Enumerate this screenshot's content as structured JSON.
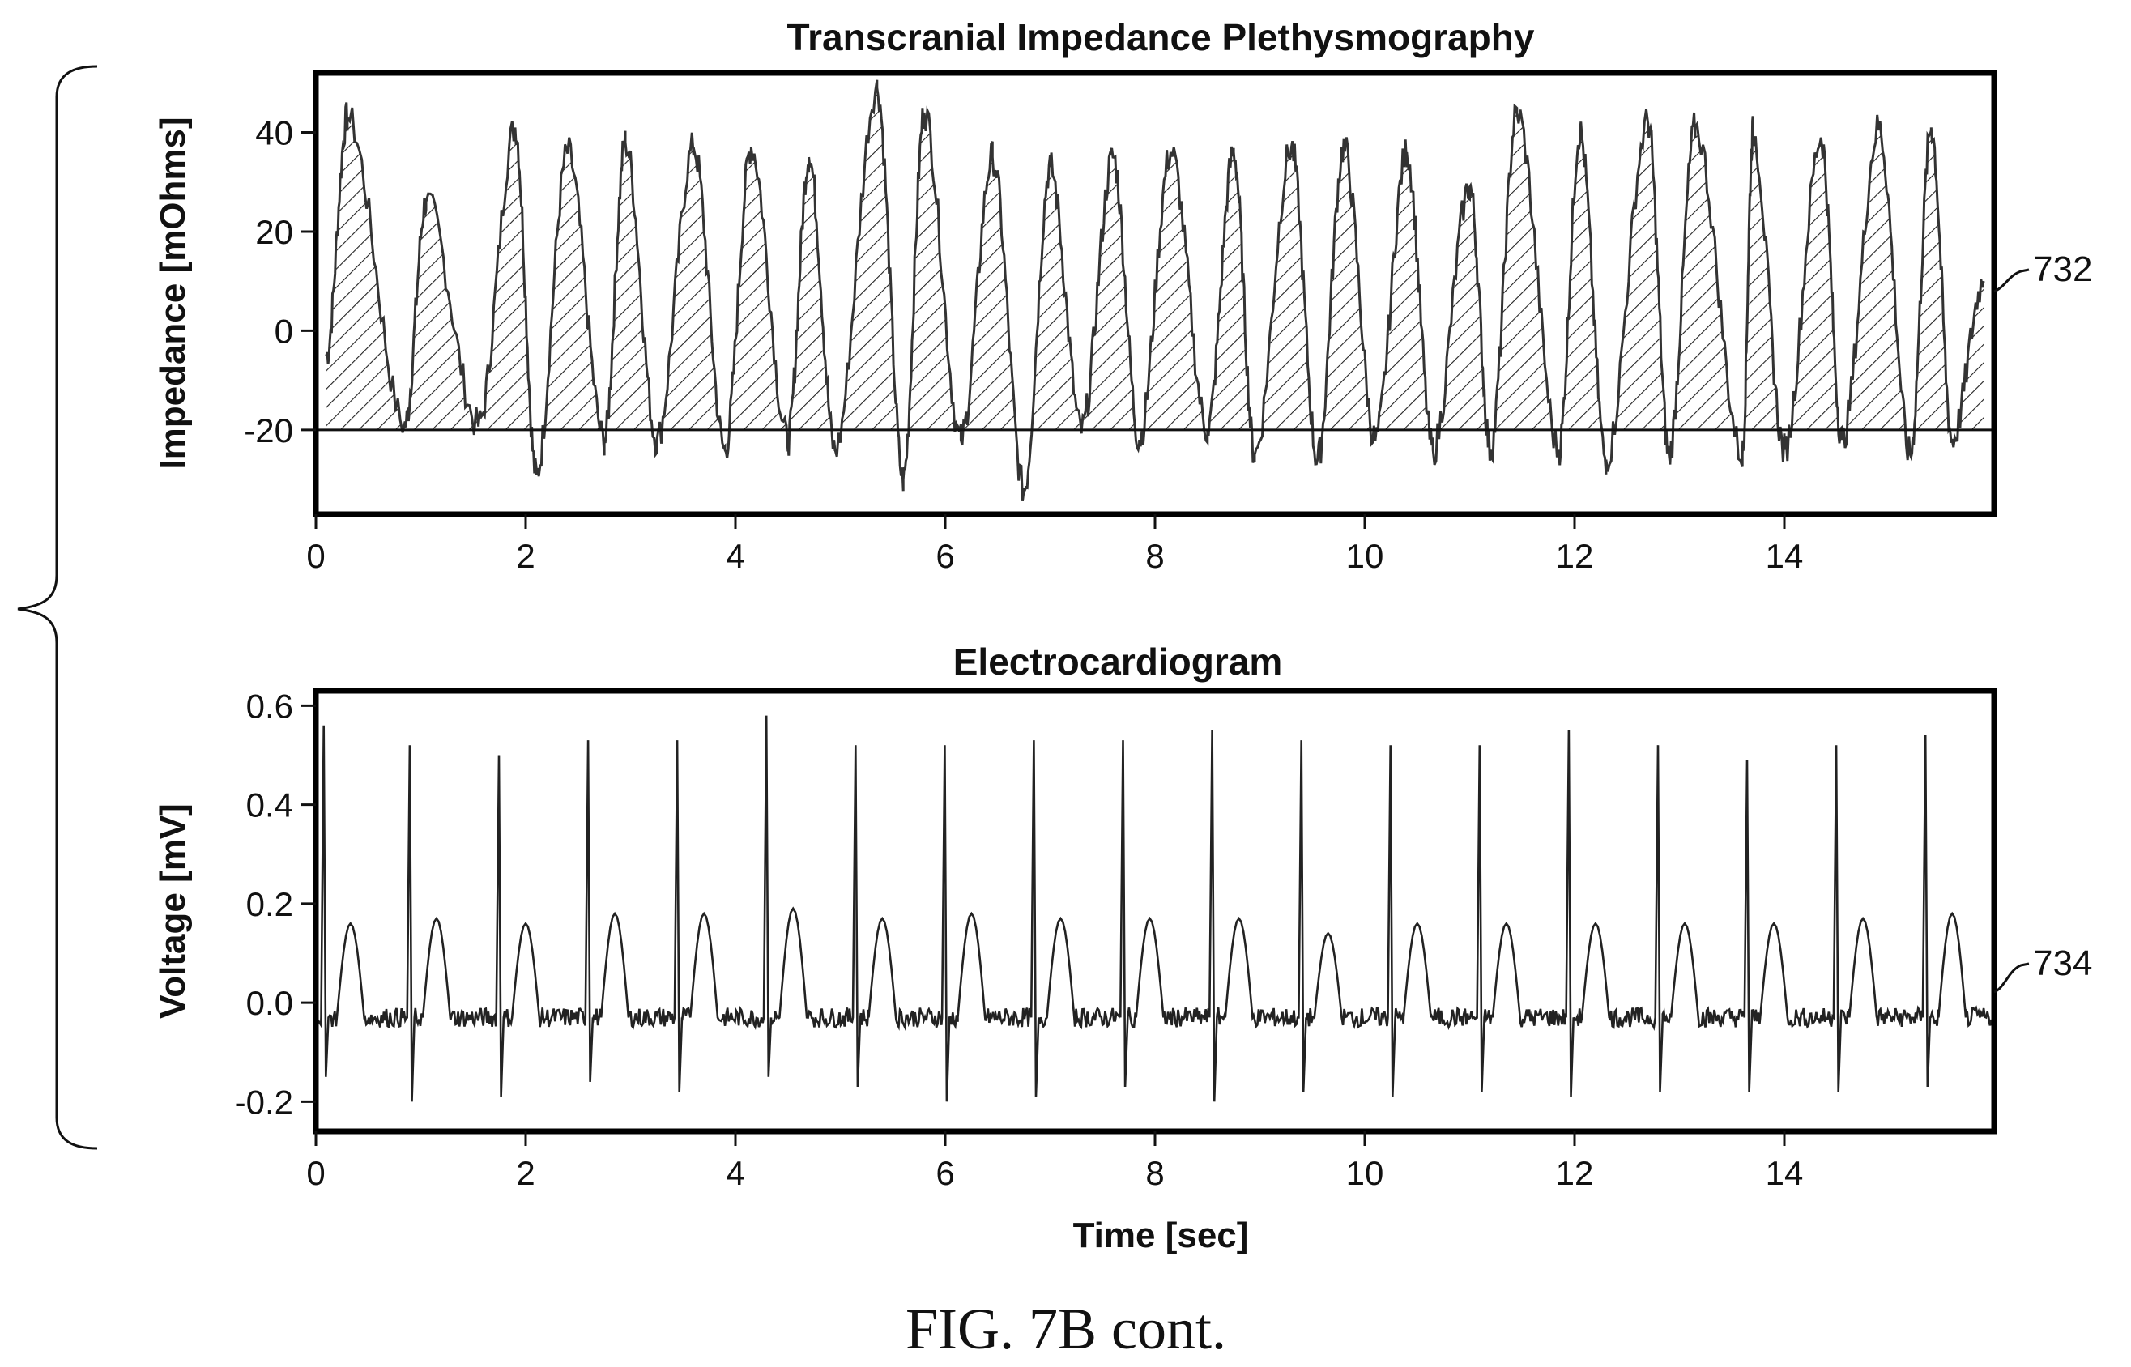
{
  "chart_data": [
    {
      "type": "line",
      "title": "Transcranial Impedance Plethysmography",
      "xlabel": "",
      "ylabel": "Impedance [mOhms]",
      "xlim": [
        0,
        16
      ],
      "ylim": [
        -37,
        52
      ],
      "x_ticks": [
        0,
        2,
        4,
        6,
        8,
        10,
        12,
        14
      ],
      "y_ticks": [
        -20,
        0,
        20,
        40
      ],
      "baseline": -20,
      "fill_hatched_above_baseline": true,
      "reference_label": "732",
      "series": [
        {
          "x": [
            0.1,
            0.3,
            0.85,
            1.05,
            1.55,
            1.9,
            2.1,
            2.4,
            2.75,
            2.95,
            3.25,
            3.6,
            3.9,
            4.15,
            4.5,
            4.7,
            4.95,
            5.35,
            5.6,
            5.8,
            6.15,
            6.45,
            6.75,
            7.0,
            7.3,
            7.6,
            7.85,
            8.15,
            8.5,
            8.75,
            8.95,
            9.3,
            9.55,
            9.8,
            10.1,
            10.4,
            10.65,
            11.0,
            11.2,
            11.45,
            11.85,
            12.05,
            12.3,
            12.7,
            12.9,
            13.15,
            13.6,
            13.7,
            14.0,
            14.35,
            14.55,
            14.9,
            15.2,
            15.4,
            15.6,
            15.9
          ],
          "y": [
            -5,
            43,
            -19,
            26,
            -19,
            41,
            -29,
            36,
            -22,
            38,
            -22,
            37,
            -24,
            37,
            -22,
            35,
            -24,
            49,
            -30,
            44,
            -22,
            35,
            -32,
            33,
            -20,
            35,
            -22,
            36,
            -20,
            36,
            -25,
            37,
            -26,
            37,
            -22,
            36,
            -24,
            29,
            -24,
            44,
            -24,
            40,
            -26,
            42,
            -25,
            41,
            -25,
            40,
            -24,
            39,
            -22,
            41,
            -25,
            41,
            -22,
            10
          ]
        }
      ]
    },
    {
      "type": "line",
      "title": "Electrocardiogram",
      "xlabel": "Time [sec]",
      "ylabel": "Voltage [mV]",
      "xlim": [
        0,
        16
      ],
      "ylim": [
        -0.26,
        0.63
      ],
      "x_ticks": [
        0,
        2,
        4,
        6,
        8,
        10,
        12,
        14
      ],
      "y_ticks": [
        -0.2,
        0.0,
        0.2,
        0.4,
        0.6
      ],
      "reference_label": "734",
      "series": [
        {
          "beats_x": [
            0.08,
            0.9,
            1.75,
            2.6,
            3.45,
            4.3,
            5.15,
            6.0,
            6.85,
            7.7,
            8.55,
            9.4,
            10.25,
            11.1,
            11.95,
            12.8,
            13.65,
            14.5,
            15.35
          ],
          "r_peaks": [
            0.56,
            0.52,
            0.5,
            0.53,
            0.53,
            0.58,
            0.52,
            0.52,
            0.53,
            0.53,
            0.55,
            0.53,
            0.52,
            0.52,
            0.55,
            0.52,
            0.49,
            0.52,
            0.54
          ],
          "t_peaks": [
            0.16,
            0.17,
            0.16,
            0.18,
            0.18,
            0.19,
            0.17,
            0.18,
            0.17,
            0.17,
            0.17,
            0.14,
            0.16,
            0.16,
            0.16,
            0.16,
            0.16,
            0.17,
            0.18
          ],
          "s_troughs": [
            -0.15,
            -0.2,
            -0.19,
            -0.16,
            -0.18,
            -0.15,
            -0.17,
            -0.2,
            -0.19,
            -0.17,
            -0.2,
            -0.18,
            -0.19,
            -0.18,
            -0.19,
            -0.18,
            -0.18,
            -0.18,
            -0.17
          ],
          "baseline": -0.03
        }
      ]
    }
  ],
  "caption": "FIG. 7B cont."
}
